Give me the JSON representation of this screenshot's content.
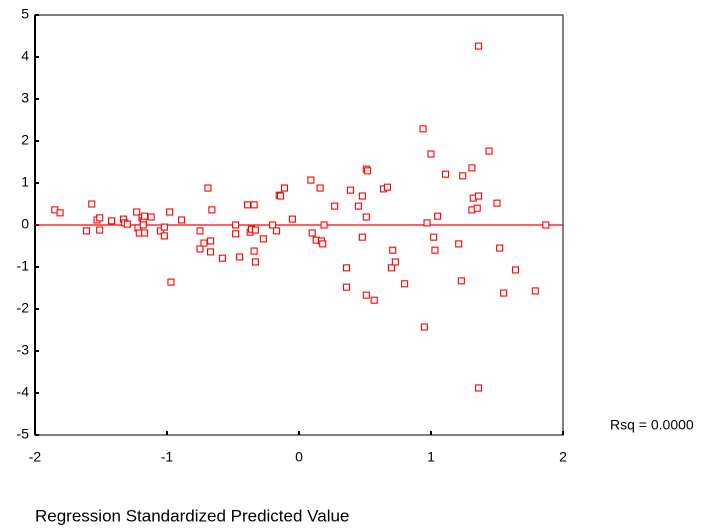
{
  "chart_data": {
    "type": "scatter",
    "xlabel": "Regression Standardized Predicted Value",
    "annotation": "Rsq = 0.0000",
    "color": "#ff0000",
    "fit_line": {
      "slope": 0,
      "intercept": 0
    },
    "xlim": [
      -2,
      2
    ],
    "xticks": [
      -2,
      -1,
      0,
      1,
      2
    ],
    "ylim": [
      -5,
      5
    ],
    "yticks": [
      -5,
      -4,
      -3,
      -2,
      -1,
      0,
      1,
      2,
      3,
      4,
      5
    ],
    "x": [
      -1.85,
      -1.81,
      -1.61,
      -1.57,
      -1.53,
      -1.51,
      -1.51,
      -1.42,
      -1.33,
      -1.32,
      -1.3,
      -1.23,
      -1.22,
      -1.21,
      -1.19,
      -1.18,
      -1.18,
      -1.17,
      -1.17,
      -1.12,
      -1.05,
      -1.02,
      -1.02,
      -0.98,
      -0.97,
      -0.89,
      -0.75,
      -0.75,
      -0.72,
      -0.69,
      -0.67,
      -0.67,
      -0.66,
      -0.58,
      -0.48,
      -0.48,
      -0.45,
      -0.39,
      -0.37,
      -0.36,
      -0.34,
      -0.34,
      -0.33,
      -0.33,
      -0.27,
      -0.2,
      -0.17,
      -0.15,
      -0.14,
      -0.11,
      -0.05,
      0.09,
      0.1,
      0.13,
      0.16,
      0.17,
      0.18,
      0.19,
      0.27,
      0.36,
      0.36,
      0.39,
      0.45,
      0.48,
      0.48,
      0.51,
      0.52,
      0.51,
      0.51,
      0.57,
      0.64,
      0.67,
      0.7,
      0.71,
      0.73,
      0.8,
      0.94,
      0.95,
      0.97,
      1.0,
      1.02,
      1.03,
      1.05,
      1.11,
      1.21,
      1.23,
      1.24,
      1.31,
      1.31,
      1.32,
      1.35,
      1.36,
      1.36,
      1.36,
      1.44,
      1.5,
      1.52,
      1.55,
      1.64,
      1.79,
      1.87
    ],
    "values": [
      0.36,
      0.29,
      -0.14,
      0.5,
      0.12,
      0.17,
      -0.12,
      0.1,
      0.14,
      0.05,
      0.02,
      0.31,
      -0.07,
      -0.19,
      0.17,
      0.1,
      0.0,
      -0.19,
      0.21,
      0.19,
      -0.14,
      -0.05,
      -0.26,
      0.31,
      -1.36,
      0.12,
      -0.14,
      -0.57,
      -0.43,
      0.88,
      -0.38,
      -0.64,
      0.36,
      -0.79,
      0.0,
      -0.21,
      -0.76,
      0.48,
      -0.17,
      -0.1,
      0.48,
      -0.62,
      -0.88,
      -0.12,
      -0.33,
      0.0,
      -0.14,
      0.71,
      0.69,
      0.88,
      0.14,
      1.07,
      -0.19,
      -0.36,
      0.88,
      -0.38,
      -0.45,
      0.0,
      0.45,
      -1.02,
      -1.48,
      0.83,
      0.45,
      -0.29,
      0.69,
      1.33,
      1.29,
      0.19,
      -1.67,
      -1.79,
      0.86,
      0.9,
      -1.02,
      -0.6,
      -0.88,
      -1.4,
      2.29,
      -2.43,
      0.05,
      1.69,
      -0.29,
      -0.6,
      0.21,
      1.21,
      -0.45,
      -1.33,
      1.17,
      1.36,
      0.36,
      0.64,
      0.4,
      4.26,
      0.69,
      -3.88,
      1.76,
      0.52,
      -0.55,
      -1.62,
      -1.07,
      -1.57,
      0.0
    ]
  }
}
